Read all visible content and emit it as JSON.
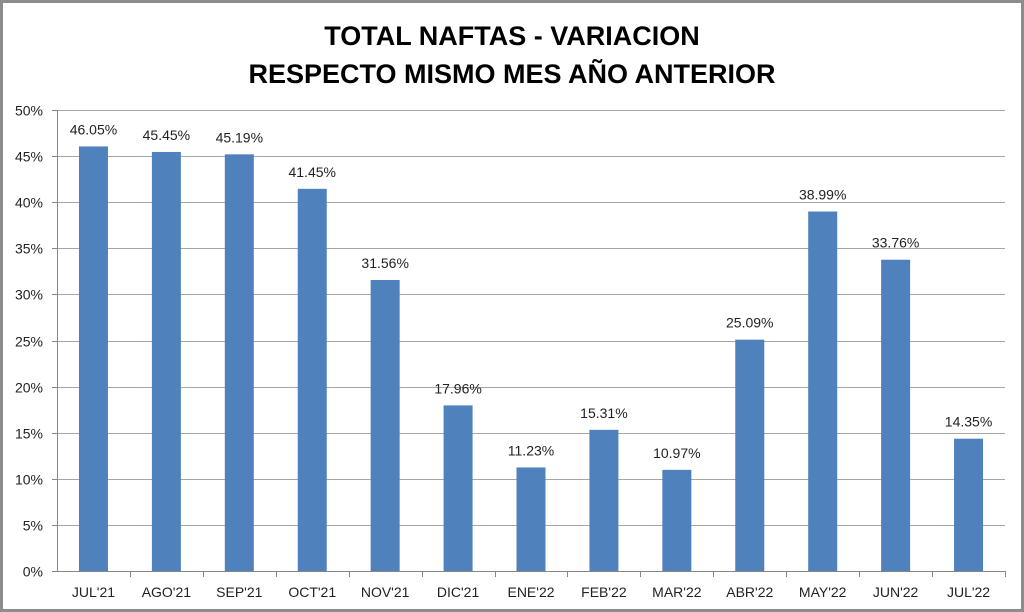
{
  "chart_data": {
    "type": "bar",
    "title_lines": [
      "TOTAL NAFTAS - VARIACION",
      "RESPECTO MISMO MES AÑO ANTERIOR"
    ],
    "categories": [
      "JUL'21",
      "AGO'21",
      "SEP'21",
      "OCT'21",
      "NOV'21",
      "DIC'21",
      "ENE'22",
      "FEB'22",
      "MAR'22",
      "ABR'22",
      "MAY'22",
      "JUN'22",
      "JUL'22"
    ],
    "values": [
      46.05,
      45.45,
      45.19,
      41.45,
      31.56,
      17.96,
      11.23,
      15.31,
      10.97,
      25.09,
      38.99,
      33.76,
      14.35
    ],
    "data_labels": [
      "46.05%",
      "45.45%",
      "45.19%",
      "41.45%",
      "31.56%",
      "17.96%",
      "11.23%",
      "15.31%",
      "10.97%",
      "25.09%",
      "38.99%",
      "33.76%",
      "14.35%"
    ],
    "ylim": [
      0,
      50
    ],
    "yticks": [
      0,
      5,
      10,
      15,
      20,
      25,
      30,
      35,
      40,
      45,
      50
    ],
    "ytick_labels": [
      "0%",
      "5%",
      "10%",
      "15%",
      "20%",
      "25%",
      "30%",
      "35%",
      "40%",
      "45%",
      "50%"
    ],
    "xlabel": "",
    "ylabel": "",
    "grid": true,
    "legend": "none",
    "bar_color": "#4f81bd"
  }
}
